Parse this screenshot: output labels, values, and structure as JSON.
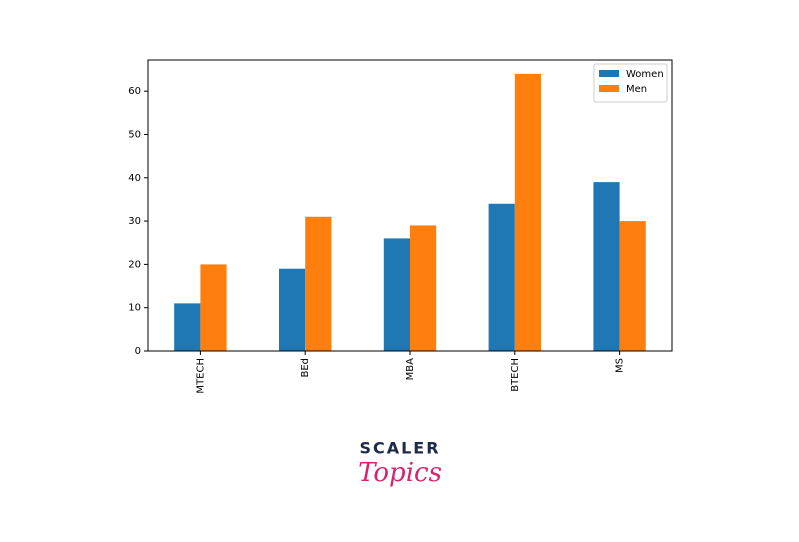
{
  "chart_data": {
    "type": "bar",
    "categories": [
      "MTECH",
      "BEd",
      "MBA",
      "BTECH",
      "MS"
    ],
    "series": [
      {
        "name": "Women",
        "color": "#1f77b4",
        "values": [
          11,
          19,
          26,
          34,
          39
        ]
      },
      {
        "name": "Men",
        "color": "#ff7f0e",
        "values": [
          20,
          31,
          29,
          64,
          30
        ]
      }
    ],
    "ylim": [
      0,
      67.2
    ],
    "yticks": [
      0,
      10,
      20,
      30,
      40,
      50,
      60
    ],
    "grid": false,
    "legend": "upper-right"
  },
  "logo": {
    "top": "SCALER",
    "bottom": "Topics"
  }
}
